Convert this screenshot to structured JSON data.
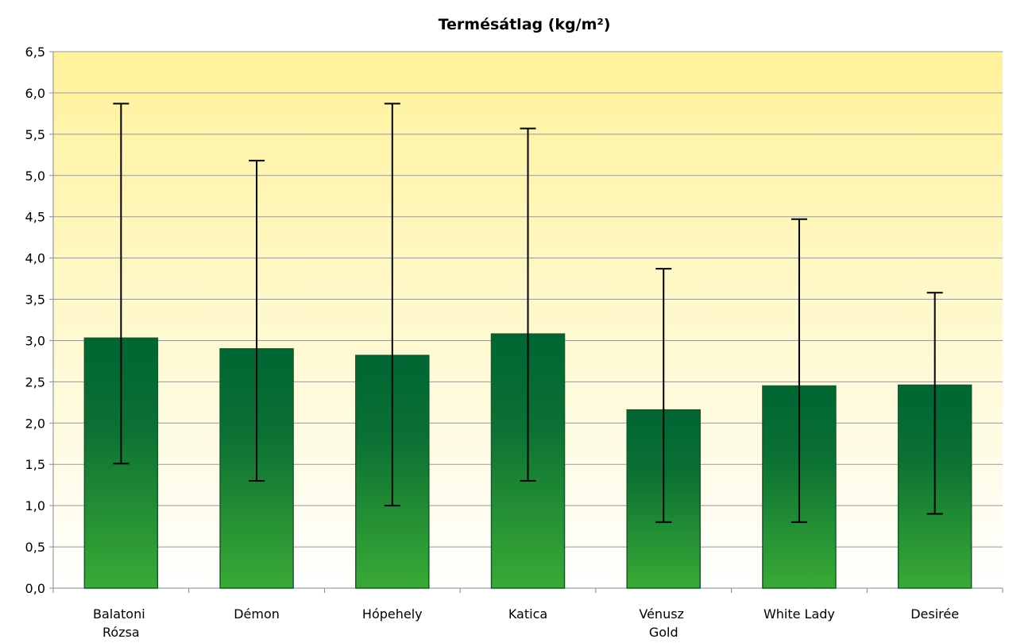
{
  "chart_data": {
    "type": "bar",
    "title": "Termésátlag (kg/m²)",
    "categories": [
      "Balatoni Rózsa",
      "Démon",
      "Hópehely",
      "Katica",
      "Vénusz Gold",
      "White Lady",
      "Desirée"
    ],
    "values": [
      3.03,
      2.9,
      2.82,
      3.08,
      2.16,
      2.45,
      2.46
    ],
    "error_min": [
      1.51,
      1.3,
      1.0,
      1.3,
      0.8,
      0.8,
      0.9
    ],
    "error_max": [
      5.87,
      5.18,
      5.87,
      5.57,
      3.87,
      4.47,
      3.58
    ],
    "color": "#1a8a3a",
    "ylim": [
      0,
      6.5
    ],
    "yticks": [
      {
        "value": 0,
        "label": "0,0"
      },
      {
        "value": 0.5,
        "label": "0,5"
      },
      {
        "value": 1,
        "label": "1,0"
      },
      {
        "value": 1.5,
        "label": "1,5"
      },
      {
        "value": 2,
        "label": "2,0"
      },
      {
        "value": 2.5,
        "label": "2,5"
      },
      {
        "value": 3,
        "label": "3,0"
      },
      {
        "value": 3.5,
        "label": "3,5"
      },
      {
        "value": 4,
        "label": "4,0"
      },
      {
        "value": 4.5,
        "label": "4,5"
      },
      {
        "value": 5,
        "label": "5,0"
      },
      {
        "value": 5.5,
        "label": "5,5"
      },
      {
        "value": 6,
        "label": "6,0"
      },
      {
        "value": 6.5,
        "label": "6,5"
      }
    ],
    "grid": true
  }
}
